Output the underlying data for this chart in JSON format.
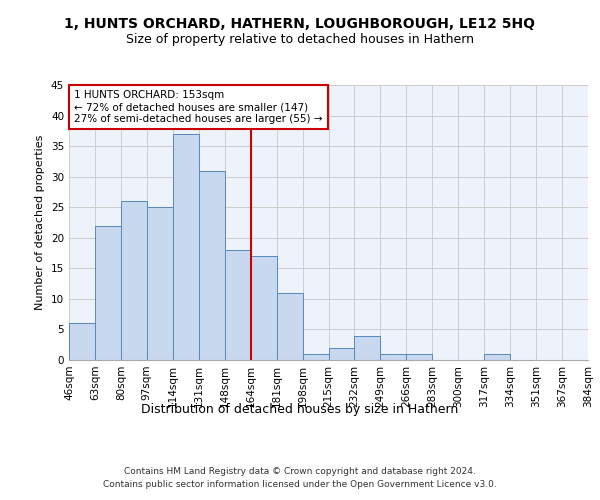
{
  "title1": "1, HUNTS ORCHARD, HATHERN, LOUGHBOROUGH, LE12 5HQ",
  "title2": "Size of property relative to detached houses in Hathern",
  "xlabel": "Distribution of detached houses by size in Hathern",
  "ylabel": "Number of detached properties",
  "bar_heights": [
    6,
    22,
    26,
    25,
    37,
    31,
    18,
    17,
    11,
    1,
    2,
    4,
    1,
    1,
    0,
    0,
    1,
    0,
    0,
    0
  ],
  "x_labels": [
    "46sqm",
    "63sqm",
    "80sqm",
    "97sqm",
    "114sqm",
    "131sqm",
    "148sqm",
    "164sqm",
    "181sqm",
    "198sqm",
    "215sqm",
    "232sqm",
    "249sqm",
    "266sqm",
    "283sqm",
    "300sqm",
    "317sqm",
    "334sqm",
    "351sqm",
    "367sqm",
    "384sqm"
  ],
  "property_line_x": 7.0,
  "annotation_text": "1 HUNTS ORCHARD: 153sqm\n← 72% of detached houses are smaller (147)\n27% of semi-detached houses are larger (55) →",
  "bar_color": "#c8d8ee",
  "bar_edge_color": "#5588bb",
  "line_color": "#cc0000",
  "annotation_box_edge_color": "#cc0000",
  "grid_color": "#cccccc",
  "background_color": "#eef3fb",
  "ylim": [
    0,
    45
  ],
  "yticks": [
    0,
    5,
    10,
    15,
    20,
    25,
    30,
    35,
    40,
    45
  ],
  "footer": "Contains HM Land Registry data © Crown copyright and database right 2024.\nContains public sector information licensed under the Open Government Licence v3.0.",
  "title1_fontsize": 10,
  "title2_fontsize": 9,
  "xlabel_fontsize": 9,
  "ylabel_fontsize": 8,
  "tick_fontsize": 7.5,
  "annotation_fontsize": 7.5,
  "footer_fontsize": 6.5
}
